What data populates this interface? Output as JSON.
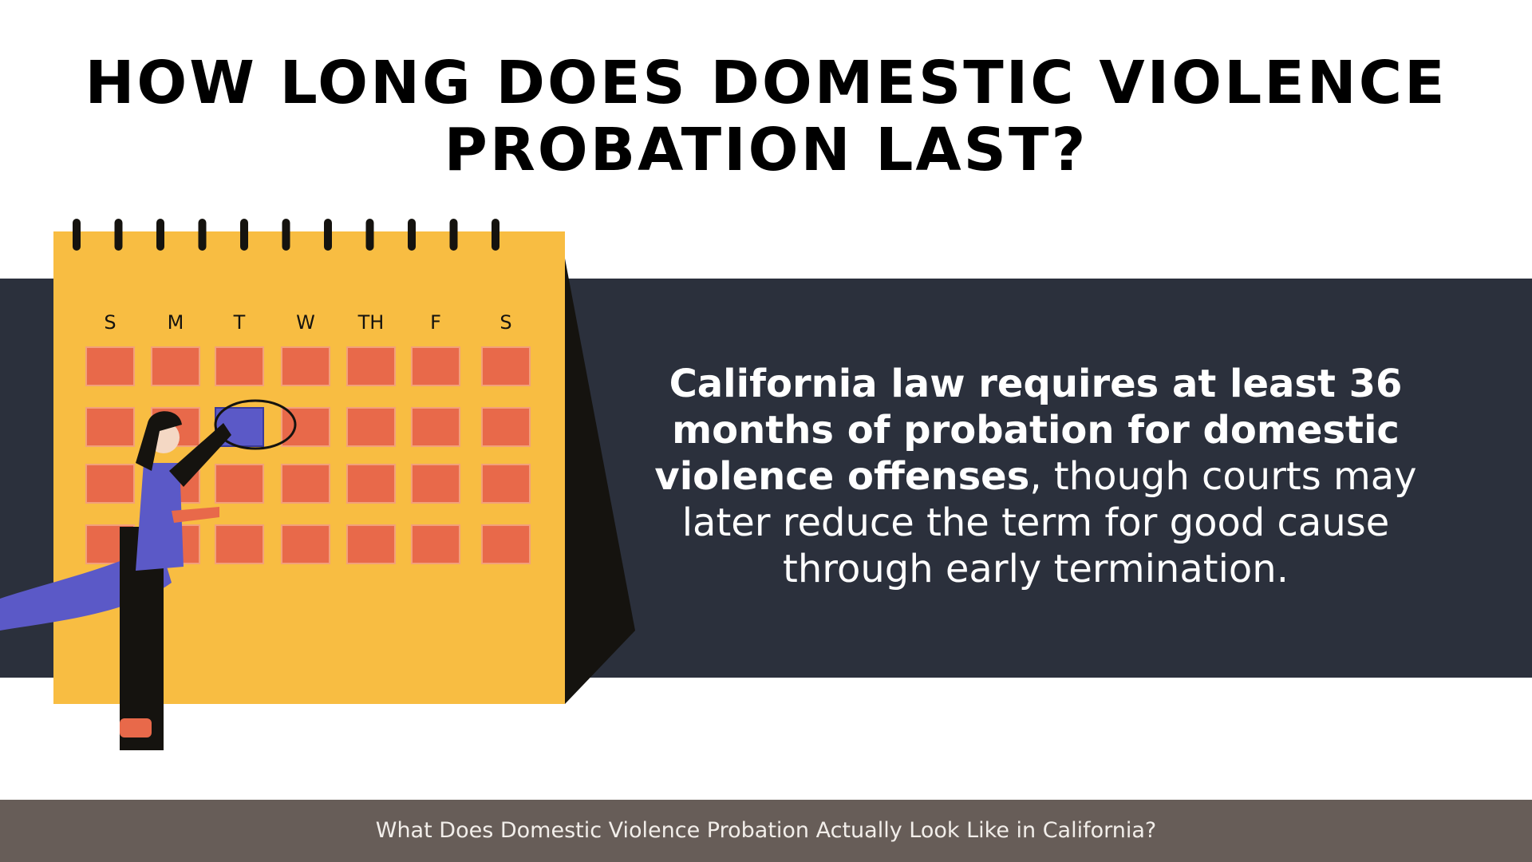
{
  "header": {
    "title_lines": [
      "HOW LONG DOES DOMESTIC VIOLENCE",
      "PROBATION LAST?"
    ]
  },
  "calendar": {
    "days": [
      "S",
      "M",
      "T",
      "W",
      "TH",
      "F",
      "S"
    ]
  },
  "body": {
    "bold": "California law requires at least 36 months of probation for domestic violence offenses",
    "regular": ", though courts may later reduce the term for good cause through early termination."
  },
  "footer": {
    "text": "What Does Domestic Violence Probation Actually Look Like in California?"
  }
}
